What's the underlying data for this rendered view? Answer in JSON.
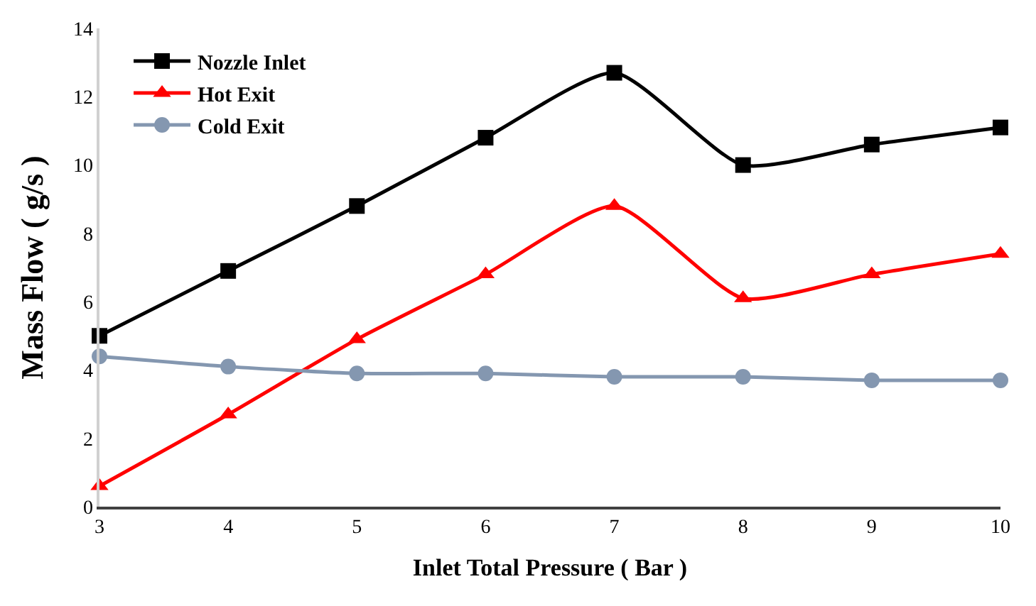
{
  "chart_data": {
    "type": "line",
    "xlabel": "Inlet Total Pressure ( Bar )",
    "ylabel": "Mass Flow ( g/s )",
    "x": [
      3,
      4,
      5,
      6,
      7,
      8,
      9,
      10
    ],
    "xlim": [
      3,
      10
    ],
    "xticks": [
      3,
      4,
      5,
      6,
      7,
      8,
      9,
      10
    ],
    "ylim": [
      0,
      14
    ],
    "yticks": [
      0,
      2,
      4,
      6,
      8,
      10,
      12,
      14
    ],
    "legend": "top left",
    "line_style": "solid",
    "series": [
      {
        "name": "Nozzle Inlet",
        "color": "#000000",
        "marker": "square",
        "values": [
          5.0,
          6.9,
          8.8,
          10.8,
          12.7,
          10.0,
          10.6,
          11.1
        ]
      },
      {
        "name": "Hot Exit",
        "color": "#ff0000",
        "marker": "triangle",
        "values": [
          0.6,
          2.7,
          4.9,
          6.8,
          8.8,
          6.1,
          6.8,
          7.4
        ]
      },
      {
        "name": "Cold Exit",
        "color": "#8497b0",
        "marker": "circle",
        "values": [
          4.4,
          4.1,
          3.9,
          3.9,
          3.8,
          3.8,
          3.7,
          3.7
        ]
      }
    ]
  }
}
